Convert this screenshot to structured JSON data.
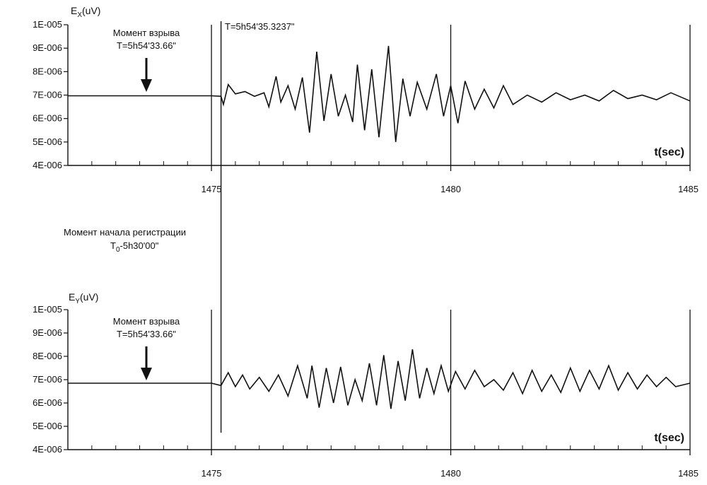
{
  "chart_data": [
    {
      "type": "line",
      "ylabel": "E",
      "ylabel_sub": "X",
      "ylabel_unit": "(uV)",
      "xlabel": "t(sec)",
      "xlim": [
        1472,
        1485
      ],
      "ylim": [
        4e-06,
        1e-05
      ],
      "x_ticks": [
        "1475",
        "1480",
        "1485"
      ],
      "y_ticks": [
        "1E-005",
        "9E-006",
        "8E-006",
        "7E-006",
        "6E-006",
        "5E-006",
        "4E-006"
      ],
      "x_minor_step": 0.5,
      "grid": "vertical lines at 1475, 1480, 1485",
      "markers": [
        {
          "x": 1475.2
        }
      ],
      "annotations": {
        "explosion_line1": "Момент взрыва",
        "explosion_line2": "T=5h54'33.66\"",
        "arrival": "T=5h54'35.3237\""
      },
      "series": [
        {
          "x": [
            1472,
            1473,
            1474,
            1475,
            1475.2,
            1475.25,
            1475.35,
            1475.5,
            1475.7,
            1475.9,
            1476.1,
            1476.2,
            1476.35,
            1476.45,
            1476.6,
            1476.75,
            1476.9,
            1477.05,
            1477.2,
            1477.35,
            1477.5,
            1477.65,
            1477.8,
            1477.95,
            1478.05,
            1478.2,
            1478.35,
            1478.5,
            1478.7,
            1478.85,
            1479.0,
            1479.15,
            1479.3,
            1479.5,
            1479.7,
            1479.85,
            1480.0,
            1480.15,
            1480.3,
            1480.5,
            1480.7,
            1480.9,
            1481.1,
            1481.3,
            1481.6,
            1481.9,
            1482.2,
            1482.5,
            1482.8,
            1483.1,
            1483.4,
            1483.7,
            1484.0,
            1484.3,
            1484.6,
            1485
          ],
          "values": [
            6.97e-06,
            6.97e-06,
            6.97e-06,
            6.97e-06,
            6.95e-06,
            6.6e-06,
            7.45e-06,
            7.05e-06,
            7.15e-06,
            6.95e-06,
            7.1e-06,
            6.5e-06,
            7.8e-06,
            6.7e-06,
            7.4e-06,
            6.4e-06,
            7.75e-06,
            5.4e-06,
            8.85e-06,
            5.9e-06,
            7.9e-06,
            6.1e-06,
            7e-06,
            5.85e-06,
            8.3e-06,
            5.5e-06,
            8.1e-06,
            5.2e-06,
            9.1e-06,
            5e-06,
            7.7e-06,
            6.1e-06,
            7.55e-06,
            6.4e-06,
            7.9e-06,
            6.1e-06,
            7.4e-06,
            5.8e-06,
            7.6e-06,
            6.4e-06,
            7.25e-06,
            6.45e-06,
            7.4e-06,
            6.6e-06,
            7e-06,
            6.7e-06,
            7.1e-06,
            6.8e-06,
            7e-06,
            6.75e-06,
            7.2e-06,
            6.85e-06,
            7e-06,
            6.8e-06,
            7.1e-06,
            6.75e-06
          ]
        }
      ]
    },
    {
      "type": "line",
      "ylabel": "E",
      "ylabel_sub": "Y",
      "ylabel_unit": "(uV)",
      "xlabel": "t(sec)",
      "xlim": [
        1472,
        1485
      ],
      "ylim": [
        4e-06,
        1e-05
      ],
      "x_ticks": [
        "1475",
        "1480",
        "1485"
      ],
      "y_ticks": [
        "1E-005",
        "9E-006",
        "8E-006",
        "7E-006",
        "6E-006",
        "5E-006",
        "4E-006"
      ],
      "x_minor_step": 0.5,
      "grid": "vertical lines at 1475, 1480, 1485",
      "markers": [
        {
          "x": 1475.2
        }
      ],
      "annotations": {
        "explosion_line1": "Момент взрыва",
        "explosion_line2": "T=5h54'33.66\""
      },
      "series": [
        {
          "x": [
            1472,
            1473,
            1474,
            1475,
            1475.2,
            1475.35,
            1475.5,
            1475.65,
            1475.8,
            1476.0,
            1476.2,
            1476.4,
            1476.6,
            1476.8,
            1477.0,
            1477.1,
            1477.25,
            1477.4,
            1477.55,
            1477.7,
            1477.85,
            1478.0,
            1478.15,
            1478.3,
            1478.45,
            1478.6,
            1478.75,
            1478.9,
            1479.05,
            1479.2,
            1479.35,
            1479.5,
            1479.65,
            1479.8,
            1479.95,
            1480.1,
            1480.3,
            1480.5,
            1480.7,
            1480.9,
            1481.1,
            1481.3,
            1481.5,
            1481.7,
            1481.9,
            1482.1,
            1482.3,
            1482.5,
            1482.7,
            1482.9,
            1483.1,
            1483.3,
            1483.5,
            1483.7,
            1483.9,
            1484.1,
            1484.3,
            1484.5,
            1484.7,
            1485
          ],
          "values": [
            6.85e-06,
            6.85e-06,
            6.85e-06,
            6.85e-06,
            6.75e-06,
            7.3e-06,
            6.7e-06,
            7.2e-06,
            6.6e-06,
            7.1e-06,
            6.5e-06,
            7.2e-06,
            6.3e-06,
            7.6e-06,
            6.2e-06,
            7.6e-06,
            5.8e-06,
            7.5e-06,
            6e-06,
            7.55e-06,
            5.9e-06,
            7e-06,
            6.1e-06,
            7.7e-06,
            5.9e-06,
            8.05e-06,
            5.75e-06,
            7.8e-06,
            6.1e-06,
            8.3e-06,
            6.2e-06,
            7.5e-06,
            6.4e-06,
            7.6e-06,
            6.5e-06,
            7.35e-06,
            6.6e-06,
            7.4e-06,
            6.7e-06,
            7e-06,
            6.55e-06,
            7.3e-06,
            6.4e-06,
            7.4e-06,
            6.5e-06,
            7.2e-06,
            6.45e-06,
            7.5e-06,
            6.5e-06,
            7.4e-06,
            6.6e-06,
            7.6e-06,
            6.55e-06,
            7.3e-06,
            6.6e-06,
            7.2e-06,
            6.7e-06,
            7.1e-06,
            6.7e-06,
            6.85e-06
          ]
        }
      ]
    }
  ],
  "registration": {
    "line1": "Момент начала регистрации",
    "line2_main": "T",
    "line2_sub": "0",
    "line2_rest": "-5h30'00\""
  }
}
